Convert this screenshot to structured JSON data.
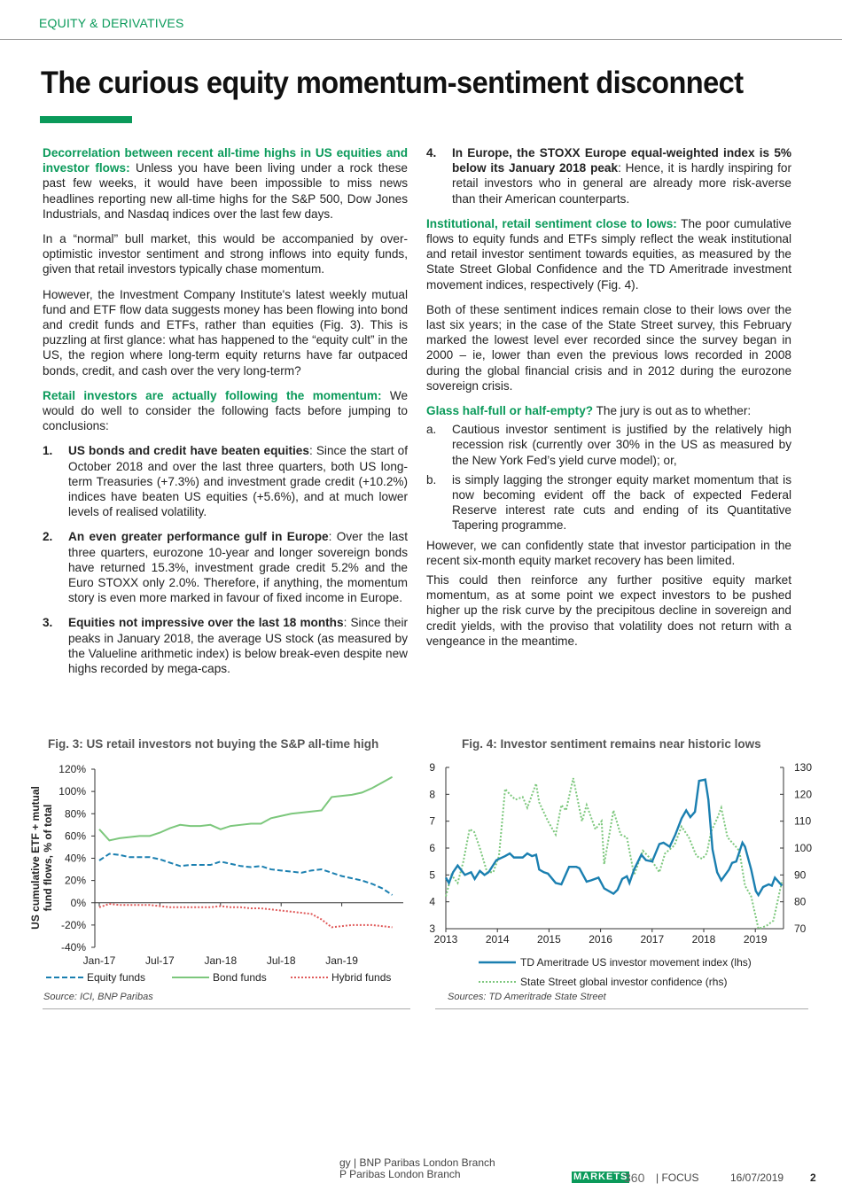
{
  "header": {
    "section": "EQUITY & DERIVATIVES",
    "title": "The curious equity momentum-sentiment disconnect"
  },
  "colors": {
    "accent": "#0a9a5a",
    "equity": "#1a7fb0",
    "bond": "#7cc77c",
    "hybrid": "#e05a5a"
  },
  "left": {
    "p1": {
      "lead": "Decorrelation between recent all-time highs in US equities and investor flows:",
      "text": " Unless you have been living under a rock these past few weeks, it would have been impossible to miss news headlines reporting new all-time highs for the S&P 500, Dow Jones Industrials, and Nasdaq indices over the last few days."
    },
    "p2": "In a “normal” bull market, this would be accompanied by over-optimistic investor sentiment and strong inflows into equity funds, given that retail investors typically chase momentum.",
    "p3": "However, the Investment Company Institute's latest weekly mutual fund and ETF flow data suggests money has been flowing into bond and credit funds and ETFs, rather than equities (Fig. 3). This is puzzling at first glance: what has happened to the “equity cult” in the US, the region where long-term equity returns have far outpaced bonds, credit, and cash over the very long-term?",
    "p4": {
      "lead": "Retail investors are actually following the momentum:",
      "text": " We would do well to consider the following facts before jumping to conclusions:"
    },
    "items": [
      {
        "num": "1.",
        "bold": "US bonds and credit have beaten equities",
        "text": ": Since the start of October 2018 and over the last three quarters, both US long-term Treasuries (+7.3%) and investment grade credit (+10.2%) indices have beaten US equities (+5.6%), and at much lower levels of realised volatility."
      },
      {
        "num": "2.",
        "bold": "An even greater performance gulf in Europe",
        "text": ": Over the last three quarters, eurozone 10-year and longer sovereign bonds have returned 15.3%, investment grade credit 5.2% and the Euro STOXX only 2.0%. Therefore, if anything, the momentum story is even more marked in favour of fixed income in Europe."
      },
      {
        "num": "3.",
        "bold": "Equities not impressive over the last 18 months",
        "text": ": Since their peaks in January 2018, the average US stock (as measured by the Valueline arithmetic index) is below break-even despite new highs recorded by mega-caps."
      }
    ]
  },
  "right": {
    "item4": {
      "num": "4.",
      "bold": "In Europe, the STOXX Europe equal-weighted index is 5% below its January 2018 peak",
      "text": ": Hence, it is hardly inspiring for retail investors who in general are already more risk-averse than their American counterparts."
    },
    "p1": {
      "lead": "Institutional, retail sentiment close to lows:",
      "text": " The poor cumulative flows to equity funds and ETFs simply reflect the weak institutional and retail investor sentiment towards equities, as measured by the State Street Global Confidence and the TD Ameritrade investment movement indices, respectively (Fig. 4)."
    },
    "p2": "Both of these sentiment indices remain close to their lows over the last six years; in the case of the State Street survey, this February marked the lowest level ever recorded since the survey began in 2000 – ie, lower than even the previous lows recorded in 2008 during the global financial crisis and in 2012 during the eurozone sovereign crisis.",
    "p3": {
      "lead": "Glass half-full or half-empty?",
      "text": " The jury is out as to whether:"
    },
    "items": [
      {
        "num": "a.",
        "text": "Cautious investor sentiment is justified by the relatively high recession risk (currently over 30% in the US as measured by the New York Fed’s yield curve model); or,"
      },
      {
        "num": "b.",
        "text": "is simply lagging the stronger equity market momentum that is now becoming evident off the back of expected Federal Reserve interest rate cuts and ending of its Quantitative Tapering programme."
      }
    ],
    "p4": "However, we can confidently state that investor participation in the recent six-month equity market recovery has been limited.",
    "p5": "This could then reinforce any further positive equity market momentum, as at some point we expect investors to be pushed higher up the risk curve by the precipitous decline in sovereign and credit yields, with the proviso that volatility does not return with a vengeance in the meantime."
  },
  "chart_data": [
    {
      "type": "line",
      "title": "Fig. 3: US retail investors not buying the S&P all-time high",
      "ylabel": "US cumulative ETF + mutual fund flows, % of total",
      "source": "Source: ICI, BNP Paribas",
      "ylim": [
        -40,
        120
      ],
      "yticks": [
        "120%",
        "100%",
        "80%",
        "60%",
        "40%",
        "20%",
        "0%",
        "-20%",
        "-40%"
      ],
      "ytick_values": [
        120,
        100,
        80,
        60,
        40,
        20,
        0,
        -20,
        -40
      ],
      "xticks": [
        "Jan-17",
        "Jul-17",
        "Jan-18",
        "Jul-18",
        "Jan-19"
      ],
      "x_start": "Jan-17",
      "x_end": "Jun-19",
      "frequency": "monthly",
      "legend": "bottom",
      "series": [
        {
          "name": "Equity funds",
          "style": "dashed",
          "values": [
            38,
            44,
            43,
            41,
            41,
            41,
            39,
            36,
            33,
            34,
            34,
            34,
            37,
            35,
            33,
            32,
            33,
            30,
            29,
            28,
            27,
            29,
            30,
            27,
            24,
            22,
            20,
            17,
            13,
            7
          ]
        },
        {
          "name": "Bond funds",
          "style": "solid",
          "values": [
            66,
            56,
            58,
            59,
            60,
            60,
            63,
            67,
            70,
            69,
            69,
            70,
            66,
            69,
            70,
            71,
            71,
            76,
            78,
            80,
            81,
            82,
            83,
            95,
            96,
            97,
            99,
            103,
            108,
            113
          ]
        },
        {
          "name": "Hybrid funds",
          "style": "dotted",
          "values": [
            -4,
            -1,
            -2,
            -2,
            -2,
            -2,
            -3,
            -4,
            -4,
            -4,
            -4,
            -4,
            -3,
            -4,
            -4,
            -5,
            -5,
            -6,
            -7,
            -8,
            -9,
            -10,
            -15,
            -22,
            -21,
            -20,
            -20,
            -20,
            -21,
            -22
          ]
        }
      ]
    },
    {
      "type": "line",
      "title": "Fig. 4: Investor sentiment remains near historic lows",
      "source": "Sources: TD Ameritrade State Street",
      "xlim": [
        2013,
        2019.6
      ],
      "xticks": [
        "2013",
        "2014",
        "2015",
        "2016",
        "2017",
        "2018",
        "2019"
      ],
      "ylim_left": [
        3,
        9
      ],
      "yticks_left": [
        "9",
        "8",
        "7",
        "6",
        "5",
        "4",
        "3"
      ],
      "ylim_right": [
        70,
        130
      ],
      "yticks_right": [
        "130",
        "120",
        "110",
        "100",
        "90",
        "80",
        "70"
      ],
      "legend": "bottom",
      "series": [
        {
          "name": "TD Ameritrade US investor movement index (lhs)",
          "axis": "left",
          "style": "solid",
          "x": [
            2013.0,
            2013.06,
            2013.14,
            2013.23,
            2013.37,
            2013.49,
            2013.56,
            2013.66,
            2013.75,
            2013.83,
            2013.98,
            2014.15,
            2014.24,
            2014.32,
            2014.49,
            2014.58,
            2014.67,
            2014.75,
            2014.81,
            2014.9,
            2014.98,
            2015.13,
            2015.24,
            2015.39,
            2015.53,
            2015.59,
            2015.73,
            2015.82,
            2015.96,
            2016.07,
            2016.25,
            2016.33,
            2016.42,
            2016.51,
            2016.56,
            2016.65,
            2016.79,
            2016.88,
            2017.0,
            2017.14,
            2017.22,
            2017.34,
            2017.45,
            2017.57,
            2017.66,
            2017.74,
            2017.83,
            2017.91,
            2018.03,
            2018.09,
            2018.17,
            2018.26,
            2018.34,
            2018.49,
            2018.55,
            2018.63,
            2018.75,
            2018.8,
            2018.92,
            2019.01,
            2019.06,
            2019.15,
            2019.26,
            2019.32,
            2019.38,
            2019.47,
            2019.52
          ],
          "y": [
            4.9,
            4.7,
            5.1,
            5.35,
            5.0,
            5.1,
            4.85,
            5.15,
            5.0,
            5.1,
            5.55,
            5.7,
            5.8,
            5.65,
            5.65,
            5.8,
            5.7,
            5.75,
            5.2,
            5.1,
            5.05,
            4.7,
            4.65,
            5.3,
            5.3,
            5.25,
            4.75,
            4.8,
            4.9,
            4.5,
            4.3,
            4.45,
            4.85,
            4.95,
            4.7,
            5.2,
            5.75,
            5.55,
            5.5,
            6.15,
            6.2,
            6.05,
            6.5,
            7.1,
            7.4,
            7.15,
            7.35,
            8.5,
            8.55,
            7.8,
            5.95,
            5.1,
            4.8,
            5.2,
            5.45,
            5.5,
            6.2,
            6.05,
            5.2,
            4.4,
            4.25,
            4.55,
            4.65,
            4.6,
            4.9,
            4.7,
            4.6
          ]
        },
        {
          "name": "State Street global investor confidence (rhs)",
          "axis": "right",
          "style": "dotted",
          "x": [
            2013.0,
            2013.11,
            2013.23,
            2013.34,
            2013.46,
            2013.55,
            2013.66,
            2013.8,
            2013.92,
            2014.03,
            2014.15,
            2014.24,
            2014.35,
            2014.49,
            2014.58,
            2014.75,
            2014.81,
            2014.98,
            2015.13,
            2015.24,
            2015.33,
            2015.47,
            2015.64,
            2015.73,
            2015.9,
            2016.02,
            2016.07,
            2016.25,
            2016.39,
            2016.51,
            2016.65,
            2016.82,
            2016.97,
            2017.14,
            2017.25,
            2017.43,
            2017.57,
            2017.71,
            2017.86,
            2017.97,
            2018.06,
            2018.14,
            2018.26,
            2018.34,
            2018.46,
            2018.6,
            2018.69,
            2018.8,
            2018.92,
            2019.06,
            2019.21,
            2019.35,
            2019.52
          ],
          "y": [
            82,
            90,
            87,
            95,
            107,
            106,
            100,
            91,
            91,
            97,
            122,
            120,
            118,
            119,
            115,
            124,
            117,
            110,
            105,
            116,
            114,
            126,
            110,
            116,
            107,
            110,
            94,
            114,
            105,
            104,
            90,
            99,
            96,
            91,
            98,
            101,
            108,
            104,
            97,
            96,
            98,
            106,
            111,
            115,
            104,
            101,
            99,
            86,
            82,
            70,
            71,
            73,
            88
          ]
        }
      ]
    }
  ],
  "footer": {
    "line1": "gy | BNP Paribas London Branch",
    "line2": "P Paribas London Branch",
    "logo": "MARKETS",
    "logo_num": "360",
    "focus": "| FOCUS",
    "date": "16/07/2019",
    "page": "2"
  }
}
